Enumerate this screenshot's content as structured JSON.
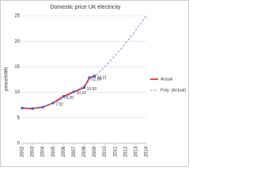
{
  "chart_data": {
    "type": "line",
    "title": "Domestic price UK electricity",
    "ylabel": "pence/kWh",
    "xlim": [
      2002,
      2014
    ],
    "xticks": [
      2002,
      2003,
      2004,
      2005,
      2006,
      2007,
      2008,
      2009,
      2010,
      2011,
      2012,
      2013,
      2014
    ],
    "ylim": [
      0,
      25
    ],
    "yticks": [
      0,
      5,
      10,
      15,
      20,
      25
    ],
    "grid": true,
    "legend": "right",
    "series": [
      {
        "name": "Actual",
        "color": "#e0202a",
        "marker_color": "#3355cc",
        "style": "solid",
        "x": [
          2002,
          2003,
          2004,
          2005,
          2006,
          2007,
          2008,
          2008.5,
          2009
        ],
        "values": [
          6.9,
          6.8,
          7.1,
          7.92,
          9.2,
          10.12,
          10.93,
          12.86,
          13.21
        ],
        "value_labels": [
          null,
          null,
          null,
          "7.92",
          "9.20",
          "10.12",
          "10.93",
          "12.86",
          "13.21"
        ]
      },
      {
        "name": "Poly. (Actual)",
        "color": "#6677dd",
        "style": "dashed",
        "x": [
          2002,
          2003,
          2004,
          2005,
          2006,
          2007,
          2008,
          2009,
          2010,
          2011,
          2012,
          2013,
          2014
        ],
        "values": [
          7.0,
          6.9,
          7.2,
          7.9,
          8.8,
          10.0,
          11.4,
          13.1,
          15.0,
          17.2,
          19.6,
          22.2,
          25.0
        ]
      }
    ]
  }
}
